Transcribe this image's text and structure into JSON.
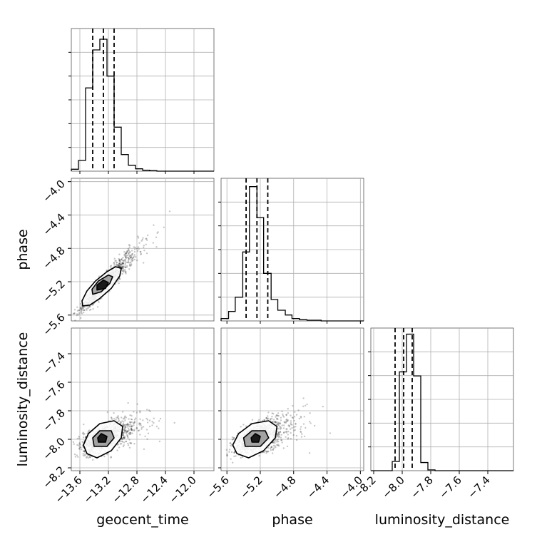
{
  "chart_data": {
    "type": "corner",
    "grid": true,
    "parameters": [
      "geocent_time",
      "phase",
      "luminosity_distance"
    ],
    "ranges": {
      "geocent_time": [
        -13.72,
        -11.72
      ],
      "phase": [
        -5.67,
        -3.96
      ],
      "luminosity_distance": [
        -8.22,
        -7.22
      ]
    },
    "ticks": {
      "geocent_time": [
        "−13.6",
        "−13.2",
        "−12.8",
        "−12.4",
        "−12.0"
      ],
      "phase": [
        "−5.6",
        "−5.2",
        "−4.8",
        "−4.4",
        "−4.0"
      ],
      "luminosity_distance": [
        "−8.2",
        "−8.0",
        "−7.8",
        "−7.6",
        "−7.4"
      ]
    },
    "tick_values": {
      "geocent_time": [
        -13.6,
        -13.2,
        -12.8,
        -12.4,
        -12.0
      ],
      "phase": [
        -5.6,
        -5.2,
        -4.8,
        -4.4,
        -4.0
      ],
      "luminosity_distance": [
        -8.2,
        -8.0,
        -7.8,
        -7.6,
        -7.4
      ]
    },
    "axis_labels": {
      "geocent_time": "geocent_time",
      "phase": "phase",
      "luminosity_distance": "luminosity_distance"
    },
    "histograms": {
      "geocent_time": {
        "edges": [
          -13.72,
          -13.62,
          -13.52,
          -13.42,
          -13.32,
          -13.22,
          -13.12,
          -13.02,
          -12.92,
          -12.82,
          -12.72,
          -12.62,
          -12.52,
          -12.42,
          -12.32,
          -12.22,
          -12.12,
          -12.02,
          -11.92,
          -11.82,
          -11.72
        ],
        "counts": [
          8,
          45,
          350,
          510,
          555,
          400,
          185,
          70,
          25,
          10,
          4,
          2,
          0,
          0,
          0,
          0,
          0,
          0,
          0,
          0
        ],
        "quantiles": [
          -13.42,
          -13.27,
          -13.12
        ],
        "ylim": [
          0,
          600
        ]
      },
      "phase": {
        "edges": [
          -5.67,
          -5.58,
          -5.5,
          -5.41,
          -5.33,
          -5.24,
          -5.16,
          -5.07,
          -4.99,
          -4.9,
          -4.82,
          -4.73,
          -4.64,
          -4.56,
          -4.47,
          -4.39,
          -4.3,
          -4.22,
          -4.13,
          -4.05,
          -3.96
        ],
        "counts": [
          10,
          40,
          100,
          290,
          565,
          435,
          200,
          90,
          45,
          25,
          10,
          5,
          3,
          3,
          0,
          0,
          0,
          0,
          0,
          0
        ],
        "quantiles": [
          -5.37,
          -5.24,
          -5.11
        ],
        "ylim": [
          0,
          600
        ]
      },
      "luminosity_distance": {
        "edges": [
          -8.22,
          -8.17,
          -8.12,
          -8.07,
          -8.02,
          -7.97,
          -7.92,
          -7.87,
          -7.82,
          -7.77,
          -7.72,
          -7.67,
          -7.62,
          -7.57,
          -7.52,
          -7.47,
          -7.42,
          -7.37,
          -7.32,
          -7.27,
          -7.22
        ],
        "counts": [
          0,
          0,
          0,
          45,
          485,
          670,
          465,
          40,
          4,
          0,
          0,
          0,
          0,
          0,
          0,
          0,
          0,
          0,
          0,
          0
        ],
        "quantiles": [
          -8.05,
          -7.99,
          -7.93
        ],
        "ylim": [
          0,
          700
        ]
      }
    },
    "pairs": [
      {
        "x": "geocent_time",
        "y": "phase",
        "mean": [
          -13.27,
          -5.24
        ],
        "std": [
          0.14,
          0.13
        ],
        "corr": 0.93,
        "contours": [
          {
            "level": "outer",
            "vertices": [
              [
                -13.56,
                -5.49
              ],
              [
                -13.46,
                -5.48
              ],
              [
                -13.32,
                -5.4
              ],
              [
                -13.16,
                -5.28
              ],
              [
                -13.04,
                -5.13
              ],
              [
                -13.02,
                -5.04
              ],
              [
                -13.1,
                -5.02
              ],
              [
                -13.22,
                -5.08
              ],
              [
                -13.38,
                -5.19
              ],
              [
                -13.5,
                -5.31
              ],
              [
                -13.57,
                -5.43
              ]
            ]
          },
          {
            "level": "middle",
            "vertices": [
              [
                -13.42,
                -5.35
              ],
              [
                -13.3,
                -5.32
              ],
              [
                -13.18,
                -5.22
              ],
              [
                -13.14,
                -5.14
              ],
              [
                -13.2,
                -5.12
              ],
              [
                -13.34,
                -5.19
              ],
              [
                -13.43,
                -5.29
              ]
            ]
          },
          {
            "level": "inner",
            "vertices": [
              [
                -13.36,
                -5.3
              ],
              [
                -13.24,
                -5.28
              ],
              [
                -13.2,
                -5.21
              ],
              [
                -13.27,
                -5.18
              ],
              [
                -13.36,
                -5.24
              ]
            ]
          }
        ]
      },
      {
        "x": "geocent_time",
        "y": "luminosity_distance",
        "mean": [
          -13.27,
          -7.99
        ],
        "std": [
          0.14,
          0.05
        ],
        "corr": 0.55,
        "contours": [
          {
            "level": "outer",
            "vertices": [
              [
                -13.5,
                -8.1
              ],
              [
                -13.36,
                -8.13
              ],
              [
                -13.16,
                -8.08
              ],
              [
                -13.02,
                -7.99
              ],
              [
                -13.0,
                -7.91
              ],
              [
                -13.12,
                -7.87
              ],
              [
                -13.32,
                -7.89
              ],
              [
                -13.48,
                -7.96
              ],
              [
                -13.55,
                -8.04
              ]
            ]
          },
          {
            "level": "middle",
            "vertices": [
              [
                -13.4,
                -8.05
              ],
              [
                -13.22,
                -8.05
              ],
              [
                -13.12,
                -7.99
              ],
              [
                -13.16,
                -7.94
              ],
              [
                -13.32,
                -7.94
              ],
              [
                -13.42,
                -7.99
              ]
            ]
          },
          {
            "level": "inner",
            "vertices": [
              [
                -13.34,
                -8.02
              ],
              [
                -13.24,
                -8.02
              ],
              [
                -13.22,
                -7.98
              ],
              [
                -13.3,
                -7.96
              ],
              [
                -13.35,
                -7.99
              ]
            ]
          }
        ]
      },
      {
        "x": "phase",
        "y": "luminosity_distance",
        "mean": [
          -5.24,
          -7.99
        ],
        "std": [
          0.13,
          0.05
        ],
        "corr": 0.55,
        "contours": [
          {
            "level": "outer",
            "vertices": [
              [
                -5.48,
                -8.1
              ],
              [
                -5.34,
                -8.13
              ],
              [
                -5.16,
                -8.08
              ],
              [
                -5.02,
                -7.99
              ],
              [
                -5.0,
                -7.91
              ],
              [
                -5.1,
                -7.87
              ],
              [
                -5.3,
                -7.89
              ],
              [
                -5.46,
                -7.96
              ],
              [
                -5.53,
                -8.04
              ]
            ]
          },
          {
            "level": "middle",
            "vertices": [
              [
                -5.38,
                -8.05
              ],
              [
                -5.2,
                -8.05
              ],
              [
                -5.1,
                -7.99
              ],
              [
                -5.14,
                -7.94
              ],
              [
                -5.3,
                -7.94
              ],
              [
                -5.4,
                -7.99
              ]
            ]
          },
          {
            "level": "inner",
            "vertices": [
              [
                -5.3,
                -8.02
              ],
              [
                -5.22,
                -8.02
              ],
              [
                -5.2,
                -7.98
              ],
              [
                -5.26,
                -7.96
              ],
              [
                -5.31,
                -7.99
              ]
            ]
          }
        ]
      }
    ]
  }
}
